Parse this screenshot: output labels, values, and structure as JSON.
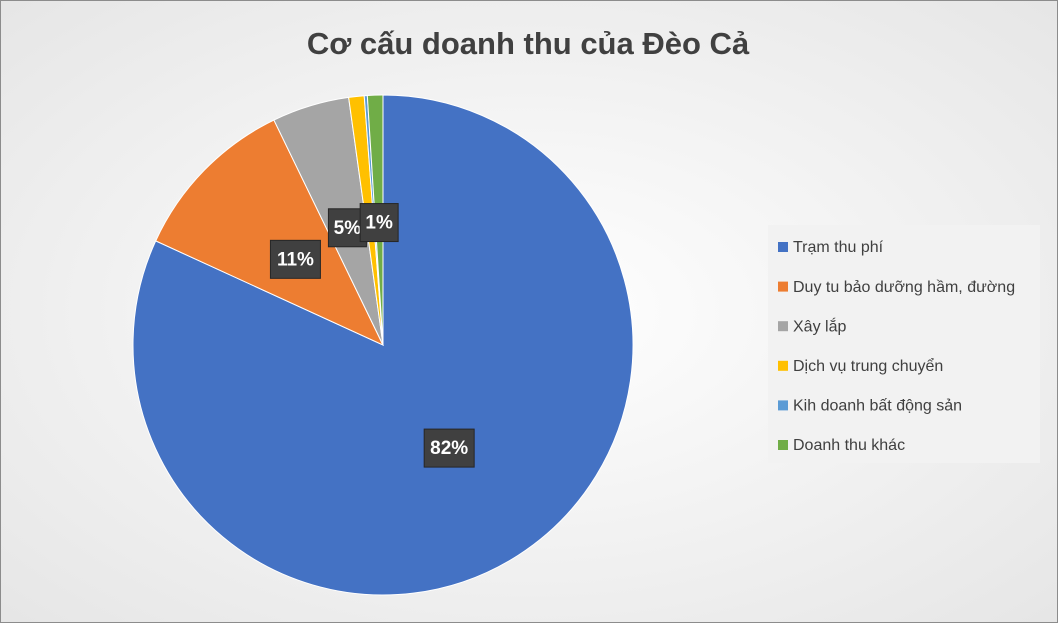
{
  "chart_data": {
    "type": "pie",
    "title": "Cơ cấu doanh thu của Đèo Cả",
    "categories": [
      "Trạm thu phí",
      "Duy tu bảo dưỡng hầm, đường",
      "Xây lắp",
      "Dịch vụ trung chuyển",
      "Kih doanh bất động sản",
      "Doanh thu khác"
    ],
    "values": [
      82,
      11,
      5,
      1,
      0.2,
      1
    ],
    "value_labels": [
      "82%",
      "11%",
      "5%",
      null,
      null,
      "1%"
    ],
    "colors": [
      "#4472c4",
      "#ed7d31",
      "#a5a5a5",
      "#ffc000",
      "#5b9bd5",
      "#70ad47"
    ],
    "legend": "right"
  }
}
